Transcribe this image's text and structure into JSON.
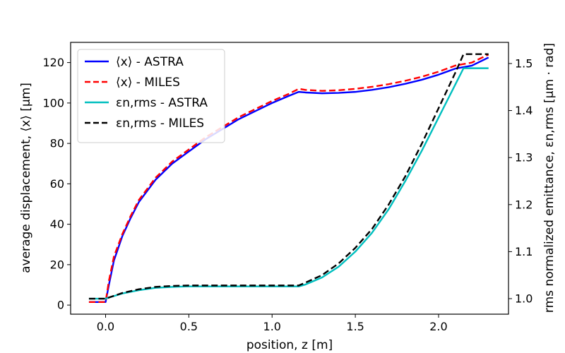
{
  "chart_data": {
    "type": "line",
    "title": "",
    "xlabel": "position, z [m]",
    "ylabel_left": "average displacement, ⟨x⟩ [μm]",
    "ylabel_right": "rms normalized emittance, εn,rms [μm · rad]",
    "xlim": [
      -0.21,
      2.42
    ],
    "ylim_left": [
      -4.5,
      130
    ],
    "ylim_right": [
      0.967,
      1.545
    ],
    "x_ticks": [
      0.0,
      0.5,
      1.0,
      1.5,
      2.0
    ],
    "x_tick_labels": [
      "0.0",
      "0.5",
      "1.0",
      "1.5",
      "2.0"
    ],
    "y_left_ticks": [
      0,
      20,
      40,
      60,
      80,
      100,
      120
    ],
    "y_left_tick_labels": [
      "0",
      "20",
      "40",
      "60",
      "80",
      "100",
      "120"
    ],
    "y_right_ticks": [
      1.0,
      1.1,
      1.2,
      1.3,
      1.4,
      1.5
    ],
    "y_right_tick_labels": [
      "1.0",
      "1.1",
      "1.2",
      "1.3",
      "1.4",
      "1.5"
    ],
    "grid": false,
    "legend_position": "top-left",
    "series": [
      {
        "name": "⟨x⟩ - ASTRA",
        "axis": "left",
        "color": "#0000ff",
        "dash": "solid",
        "x": [
          -0.1,
          0.0,
          0.02,
          0.05,
          0.1,
          0.15,
          0.2,
          0.3,
          0.4,
          0.5,
          0.6,
          0.7,
          0.8,
          0.9,
          1.0,
          1.1,
          1.16,
          1.2,
          1.3,
          1.4,
          1.5,
          1.6,
          1.7,
          1.8,
          1.9,
          2.0,
          2.1,
          2.2,
          2.3
        ],
        "y": [
          1.5,
          1.5,
          10,
          22,
          34,
          43,
          51,
          62,
          70,
          76,
          82,
          87,
          92,
          96,
          100,
          103.5,
          105.5,
          105.2,
          104.8,
          105,
          105.5,
          106.5,
          107.8,
          109.5,
          111.5,
          114,
          117,
          118.5,
          122.5
        ]
      },
      {
        "name": "⟨x⟩ - MILES",
        "axis": "left",
        "color": "#ff0000",
        "dash": "dashed",
        "x": [
          -0.1,
          0.0,
          0.02,
          0.05,
          0.1,
          0.15,
          0.2,
          0.3,
          0.4,
          0.5,
          0.6,
          0.7,
          0.8,
          0.9,
          1.0,
          1.1,
          1.16,
          1.2,
          1.3,
          1.4,
          1.5,
          1.6,
          1.7,
          1.8,
          1.9,
          2.0,
          2.1,
          2.2,
          2.3
        ],
        "y": [
          1.5,
          1.5,
          12,
          24,
          35,
          44,
          52,
          63,
          71,
          77,
          83,
          88,
          93,
          97,
          101,
          104.5,
          107,
          106.5,
          106,
          106.3,
          107,
          108,
          109.3,
          111,
          113,
          115.5,
          118.5,
          120,
          124
        ]
      },
      {
        "name": "εn,rms - ASTRA",
        "axis": "right",
        "color": "#00bfbf",
        "dash": "solid",
        "x": [
          -0.1,
          0.0,
          0.1,
          0.2,
          0.3,
          0.4,
          0.5,
          0.6,
          0.7,
          0.8,
          0.9,
          1.0,
          1.1,
          1.16,
          1.2,
          1.3,
          1.4,
          1.5,
          1.6,
          1.7,
          1.8,
          1.9,
          2.0,
          2.1,
          2.15,
          2.2,
          2.3
        ],
        "y": [
          1.0,
          1.0,
          1.011,
          1.018,
          1.023,
          1.025,
          1.026,
          1.026,
          1.026,
          1.026,
          1.026,
          1.026,
          1.026,
          1.026,
          1.03,
          1.045,
          1.068,
          1.1,
          1.14,
          1.19,
          1.25,
          1.315,
          1.385,
          1.455,
          1.49,
          1.49,
          1.49
        ]
      },
      {
        "name": "εn,rms - MILES",
        "axis": "right",
        "color": "#000000",
        "dash": "dashed",
        "x": [
          -0.1,
          0.0,
          0.1,
          0.2,
          0.3,
          0.4,
          0.5,
          0.6,
          0.7,
          0.8,
          0.9,
          1.0,
          1.1,
          1.16,
          1.2,
          1.3,
          1.4,
          1.5,
          1.6,
          1.7,
          1.8,
          1.9,
          2.0,
          2.1,
          2.15,
          2.2,
          2.3
        ],
        "y": [
          1.0,
          1.0,
          1.012,
          1.02,
          1.025,
          1.027,
          1.028,
          1.028,
          1.028,
          1.028,
          1.028,
          1.028,
          1.028,
          1.028,
          1.034,
          1.05,
          1.075,
          1.108,
          1.148,
          1.2,
          1.26,
          1.33,
          1.405,
          1.48,
          1.52,
          1.52,
          1.52
        ]
      }
    ],
    "legend": [
      {
        "label": "⟨x⟩ - ASTRA",
        "color": "#0000ff",
        "dash": "solid"
      },
      {
        "label": "⟨x⟩ - MILES",
        "color": "#ff0000",
        "dash": "dashed"
      },
      {
        "label": "εn,rms - ASTRA",
        "color": "#00bfbf",
        "dash": "solid"
      },
      {
        "label": "εn,rms - MILES",
        "color": "#000000",
        "dash": "dashed"
      }
    ]
  }
}
